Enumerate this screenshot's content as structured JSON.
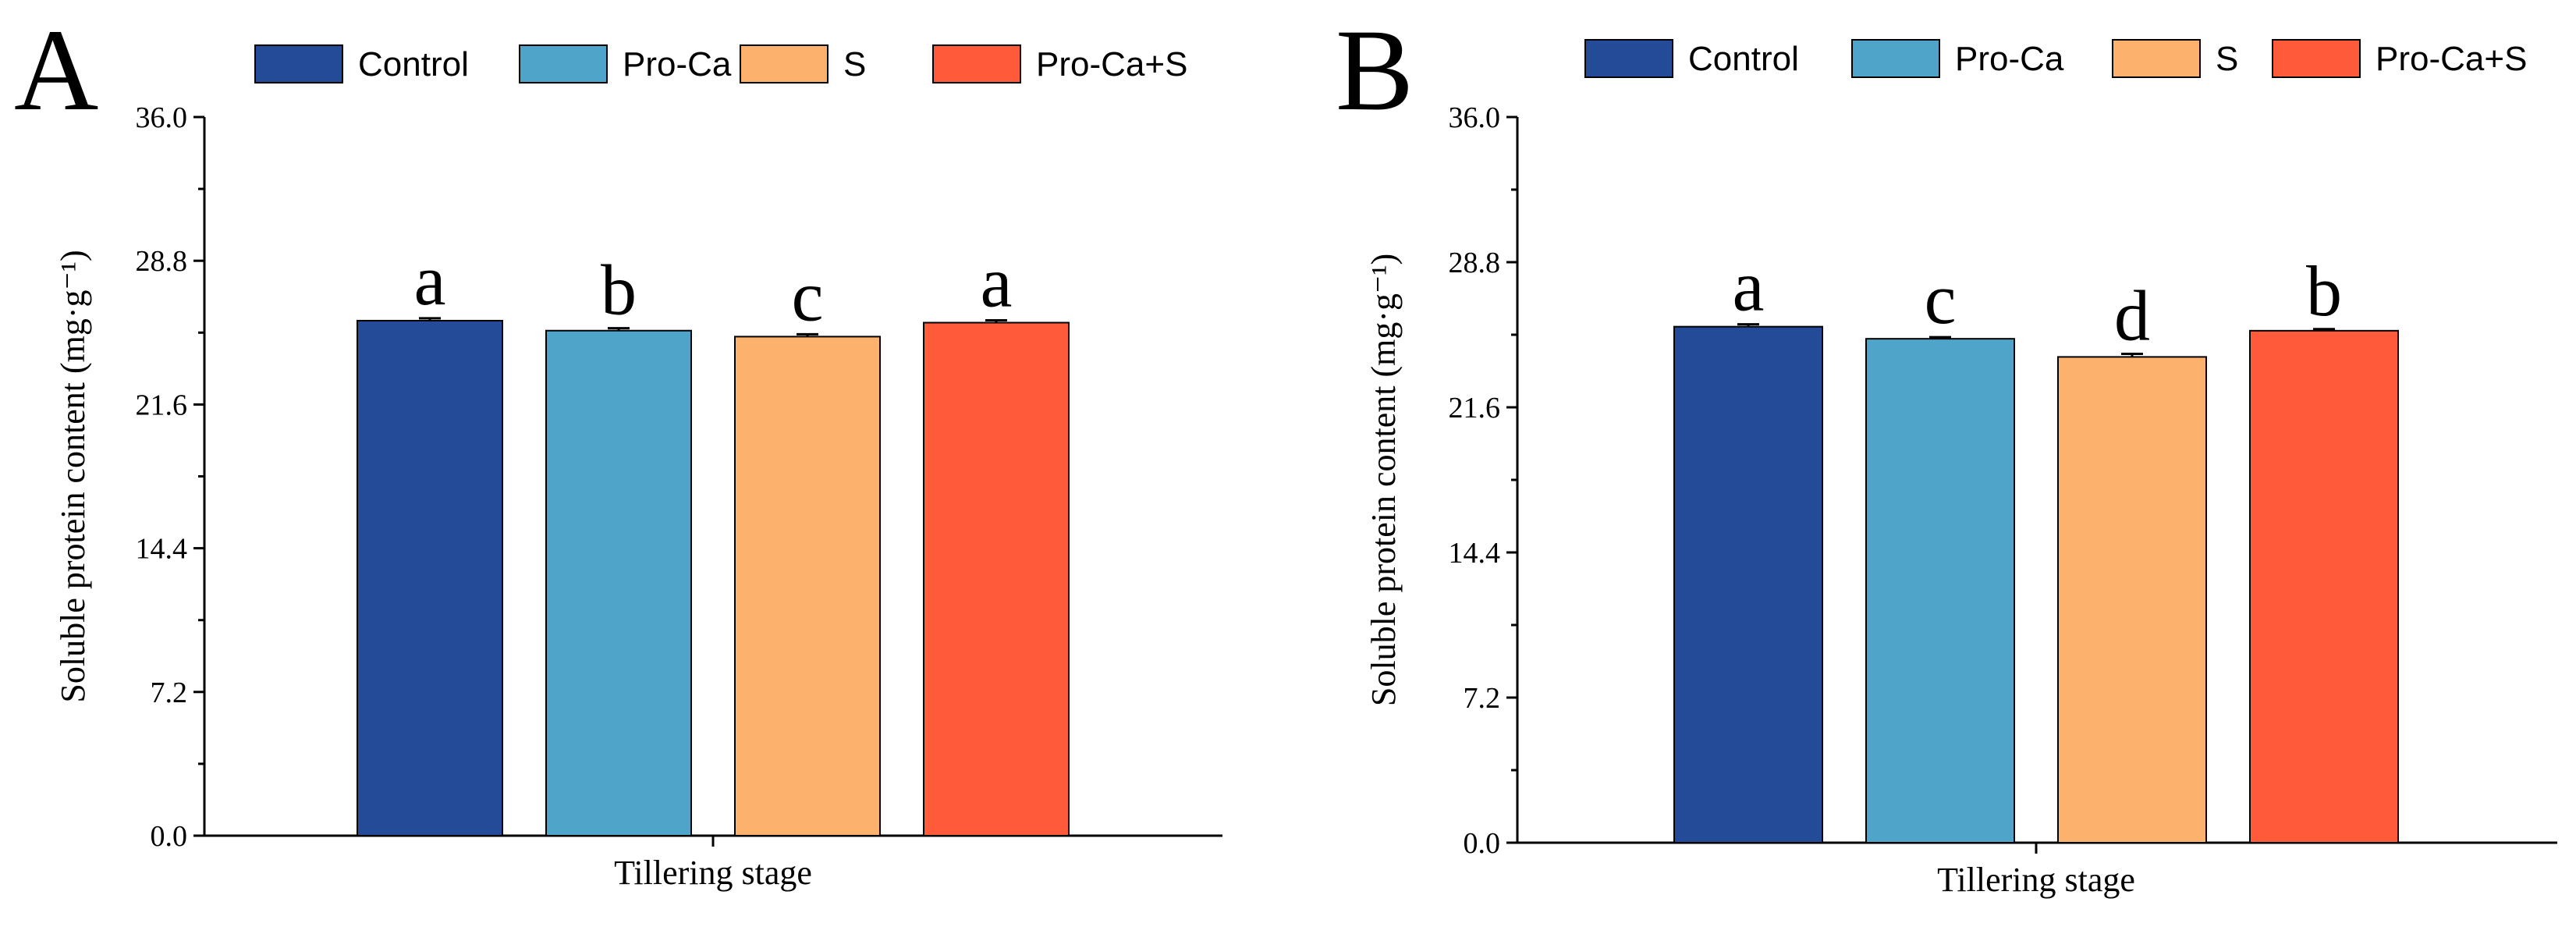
{
  "series_colors": {
    "Control": "#234b98",
    "Pro-Ca": "#4ea5c9",
    "S": "#fcb16c",
    "Pro-Ca+S": "#ff5a3a"
  },
  "chart_data": [
    {
      "panel": "A",
      "type": "bar",
      "title": "",
      "xlabel": "Tillering stage",
      "ylabel": "Soluble protein content (mg·g⁻¹)",
      "ylim": [
        0,
        36
      ],
      "yticks": [
        0.0,
        7.2,
        14.4,
        21.6,
        28.8,
        36.0
      ],
      "ytick_labels": [
        "0.0",
        "7.2",
        "14.4",
        "21.6",
        "28.8",
        "36.0"
      ],
      "legend": [
        "Control",
        "Pro-Ca",
        "S",
        "Pro-Ca+S"
      ],
      "legend_position": "top",
      "categories": [
        "Tillering stage"
      ],
      "series": [
        {
          "name": "Control",
          "values": [
            25.8
          ],
          "error": [
            0.12
          ],
          "label": "a"
        },
        {
          "name": "Pro-Ca",
          "values": [
            25.3
          ],
          "error": [
            0.12
          ],
          "label": "b"
        },
        {
          "name": "S",
          "values": [
            25.0
          ],
          "error": [
            0.12
          ],
          "label": "c"
        },
        {
          "name": "Pro-Ca+S",
          "values": [
            25.7
          ],
          "error": [
            0.12
          ],
          "label": "a"
        }
      ]
    },
    {
      "panel": "B",
      "type": "bar",
      "title": "",
      "xlabel": "Tillering stage",
      "ylabel": "Soluble protein content (mg·g⁻¹)",
      "ylim": [
        0,
        36
      ],
      "yticks": [
        0.0,
        7.2,
        14.4,
        21.6,
        28.8,
        36.0
      ],
      "ytick_labels": [
        "0.0",
        "7.2",
        "14.4",
        "21.6",
        "28.8",
        "36.0"
      ],
      "legend": [
        "Control",
        "Pro-Ca",
        "S",
        "Pro-Ca+S"
      ],
      "legend_position": "top",
      "categories": [
        "Tillering stage"
      ],
      "series": [
        {
          "name": "Control",
          "values": [
            25.6
          ],
          "error": [
            0.12
          ],
          "label": "a"
        },
        {
          "name": "Pro-Ca",
          "values": [
            25.0
          ],
          "error": [
            0.08
          ],
          "label": "c"
        },
        {
          "name": "S",
          "values": [
            24.1
          ],
          "error": [
            0.15
          ],
          "label": "d"
        },
        {
          "name": "Pro-Ca+S",
          "values": [
            25.4
          ],
          "error": [
            0.08
          ],
          "label": "b"
        }
      ]
    }
  ]
}
